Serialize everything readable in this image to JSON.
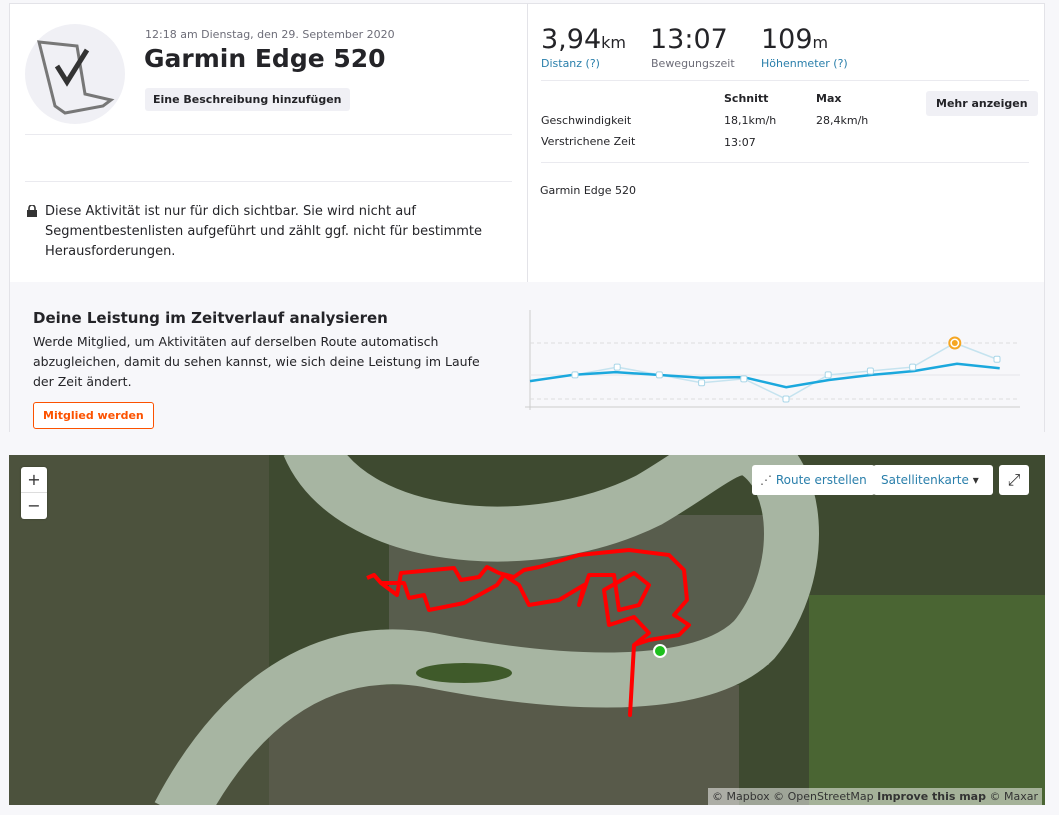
{
  "activity": {
    "date": "12:18 am Dienstag, den 29. September 2020",
    "title": "Garmin Edge 520",
    "add_description": "Eine Beschreibung hinzufügen",
    "avatar_icon": "laptop-checkmark-icon",
    "privacy": "Diese Aktivität ist nur für dich sichtbar. Sie wird nicht auf Segmentbestenlisten aufgeführt und zählt ggf. nicht für bestimmte Herausforderungen."
  },
  "stats": {
    "distance": {
      "value": "3,94",
      "unit": "km",
      "label": "Distanz (?)"
    },
    "moving_time": {
      "value": "13:07",
      "label": "Bewegungszeit"
    },
    "elevation": {
      "value": "109",
      "unit": "m",
      "label": "Höhenmeter (?)"
    },
    "col_avg": "Schnitt",
    "col_max": "Max",
    "more": "Mehr anzeigen",
    "rows": [
      {
        "label": "Geschwindigkeit",
        "avg": "18,1km/h",
        "max": "28,4km/h"
      },
      {
        "label": "Verstrichene Zeit",
        "avg": "13:07",
        "max": ""
      }
    ],
    "device": "Garmin Edge 520"
  },
  "performance": {
    "title": "Deine Leistung im Zeitverlauf analysieren",
    "text": "Werde Mitglied, um Aktivitäten auf derselben Route automatisch abzugleichen, damit du sehen kannst, wie sich deine Leistung im Laufe der Zeit ändert.",
    "join": "Mitglied werden"
  },
  "chart_data": {
    "type": "line",
    "colors": {
      "trend": "#1ba8dd",
      "efforts": "#c5e3ef",
      "highlight": "#f5a623"
    },
    "series": [
      {
        "values": [
          43,
          57,
          43,
          29,
          36,
          0,
          43,
          50,
          57,
          100,
          71
        ],
        "highlight_index": 9
      },
      {
        "values": [
          32,
          43,
          48,
          43,
          38,
          39,
          21,
          34,
          43,
          50,
          63,
          55
        ]
      }
    ]
  },
  "map": {
    "zoom_in": "+",
    "zoom_out": "−",
    "route": "Route erstellen",
    "route_icon": "route-draw-icon",
    "type": "Satellitenkarte",
    "fullscreen_icon": "fullscreen-icon",
    "attribution": {
      "mapbox": "© Mapbox",
      "osm": "© OpenStreetMap",
      "improve": "Improve this map",
      "maxar": "© Maxar"
    },
    "route_color": "#ff0000",
    "start_color": "#1dbf1d"
  }
}
